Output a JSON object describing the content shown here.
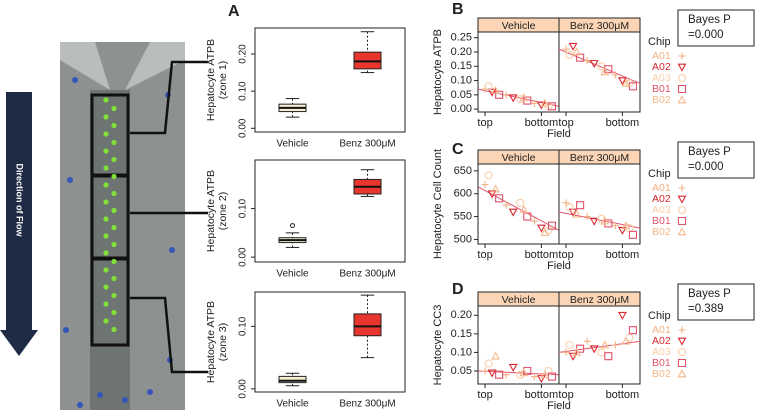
{
  "figure": {
    "panel_labels": [
      "A",
      "B",
      "C",
      "D"
    ],
    "flow_label": "Direction of Flow"
  },
  "chart_data": [
    {
      "type": "box",
      "ylabel": [
        "Hepatocyte ATPB",
        "(zone 1)"
      ],
      "categories": [
        "Vehicle",
        "Benz 300μM"
      ],
      "ylim": [
        -0.01,
        0.27
      ],
      "yticks": [
        {
          "value": 0,
          "label": "0.00"
        },
        {
          "value": 0.1,
          "label": "0.10"
        },
        {
          "value": 0.2,
          "label": "0.20"
        }
      ],
      "boxes": [
        {
          "min": 0.03,
          "q1": 0.045,
          "median": 0.055,
          "q3": 0.065,
          "max": 0.08,
          "color": "#f5ecd2",
          "outliers": []
        },
        {
          "min": 0.15,
          "q1": 0.16,
          "median": 0.18,
          "q3": 0.205,
          "max": 0.26,
          "color": "#e8352e",
          "outliers": []
        }
      ]
    },
    {
      "type": "box",
      "ylabel": [
        "Hepatocyte ATPB",
        "(zone 2)"
      ],
      "categories": [
        "Vehicle",
        "Benz 300μM"
      ],
      "ylim": [
        -0.01,
        0.2
      ],
      "yticks": [
        {
          "value": 0,
          "label": "0.00"
        },
        {
          "value": 0.1,
          "label": "0.10"
        }
      ],
      "boxes": [
        {
          "min": 0.02,
          "q1": 0.03,
          "median": 0.035,
          "q3": 0.04,
          "max": 0.05,
          "color": "#f5ecd2",
          "outliers": [
            0.065
          ]
        },
        {
          "min": 0.125,
          "q1": 0.13,
          "median": 0.145,
          "q3": 0.16,
          "max": 0.18,
          "color": "#e8352e",
          "outliers": []
        }
      ]
    },
    {
      "type": "box",
      "ylabel": [
        "Hepatocyte ATPB",
        "(zone 3)"
      ],
      "categories": [
        "Vehicle",
        "Benz 300μM"
      ],
      "ylim": [
        -0.005,
        0.155
      ],
      "yticks": [
        {
          "value": 0,
          "label": "0.00"
        },
        {
          "value": 0.1,
          "label": "0.10"
        }
      ],
      "boxes": [
        {
          "min": 0.005,
          "q1": 0.01,
          "median": 0.013,
          "q3": 0.02,
          "max": 0.025,
          "color": "#f5ecd2",
          "outliers": []
        },
        {
          "min": 0.05,
          "q1": 0.085,
          "median": 0.1,
          "q3": 0.12,
          "max": 0.15,
          "color": "#e8352e",
          "outliers": []
        }
      ]
    },
    {
      "type": "facet-scatter",
      "ylabel": "Hepatocyte ATPB",
      "xlabel": "Field",
      "legend_title": "Chip",
      "annotation": [
        "Bayes P",
        "=0.000"
      ],
      "xlim": [
        0,
        11.5
      ],
      "xticks": [
        {
          "value": 1,
          "label": "top"
        },
        {
          "value": 9,
          "label": "bottom"
        }
      ],
      "ylim": [
        -0.01,
        0.27
      ],
      "yticks": [
        {
          "value": 0,
          "label": "0.00"
        },
        {
          "value": 0.05,
          "label": "0.05"
        },
        {
          "value": 0.1,
          "label": "0.10"
        },
        {
          "value": 0.15,
          "label": "0.15"
        },
        {
          "value": 0.2,
          "label": "0.20"
        },
        {
          "value": 0.25,
          "label": "0.25"
        }
      ],
      "series": [
        {
          "name": "A01",
          "color": "#f4b183",
          "marker": "plus"
        },
        {
          "name": "A02",
          "color": "#d9262f",
          "marker": "tri-down"
        },
        {
          "name": "A03",
          "color": "#f9cfa8",
          "marker": "circle"
        },
        {
          "name": "B01",
          "color": "#e0536a",
          "marker": "square"
        },
        {
          "name": "B02",
          "color": "#f5b88a",
          "marker": "tri-up"
        }
      ],
      "panels": [
        {
          "strip": "Vehicle",
          "trend": [
            0.07,
            0.01
          ],
          "series": [
            {
              "x": [
                1,
                4,
                8
              ],
              "values": [
                0.07,
                0.05,
                0.02
              ]
            },
            {
              "x": [
                2,
                5,
                9
              ],
              "values": [
                0.06,
                0.04,
                0.015
              ]
            },
            {
              "x": [
                1.5,
                6,
                10
              ],
              "values": [
                0.08,
                0.035,
                0.01
              ]
            },
            {
              "x": [
                3,
                7,
                10.5
              ],
              "values": [
                0.05,
                0.03,
                0.01
              ]
            },
            {
              "x": [
                2.5,
                6.5,
                9.5
              ],
              "values": [
                0.065,
                0.04,
                0.02
              ]
            }
          ]
        },
        {
          "strip": "Benz 300μM",
          "trend": [
            0.21,
            0.09
          ],
          "series": [
            {
              "x": [
                1,
                4,
                8
              ],
              "values": [
                0.21,
                0.17,
                0.12
              ]
            },
            {
              "x": [
                2,
                5,
                9
              ],
              "values": [
                0.22,
                0.16,
                0.1
              ]
            },
            {
              "x": [
                1.5,
                6,
                10
              ],
              "values": [
                0.19,
                0.15,
                0.09
              ]
            },
            {
              "x": [
                3,
                7,
                10.5
              ],
              "values": [
                0.18,
                0.14,
                0.08
              ]
            },
            {
              "x": [
                2.5,
                6.5,
                9.5
              ],
              "values": [
                0.2,
                0.13,
                0.09
              ]
            }
          ]
        }
      ]
    },
    {
      "type": "facet-scatter",
      "ylabel": "Hepatocyte Cell Count",
      "xlabel": "Field",
      "legend_title": "Chip",
      "annotation": [
        "Bayes P",
        "=0.000"
      ],
      "xlim": [
        0,
        11.5
      ],
      "xticks": [
        {
          "value": 1,
          "label": "top"
        },
        {
          "value": 9,
          "label": "bottom"
        }
      ],
      "ylim": [
        490,
        665
      ],
      "yticks": [
        500,
        550,
        600,
        650
      ],
      "series": [
        {
          "name": "A01",
          "color": "#f4b183",
          "marker": "plus"
        },
        {
          "name": "A02",
          "color": "#d9262f",
          "marker": "tri-down"
        },
        {
          "name": "A03",
          "color": "#f9cfa8",
          "marker": "circle"
        },
        {
          "name": "B01",
          "color": "#e0536a",
          "marker": "square"
        },
        {
          "name": "B02",
          "color": "#f5b88a",
          "marker": "tri-up"
        }
      ],
      "panels": [
        {
          "strip": "Vehicle",
          "trend": [
            615,
            520
          ],
          "series": [
            {
              "x": [
                1,
                4,
                8
              ],
              "values": [
                620,
                575,
                540
              ]
            },
            {
              "x": [
                2,
                5,
                9
              ],
              "values": [
                600,
                560,
                525
              ]
            },
            {
              "x": [
                1.5,
                6,
                10
              ],
              "values": [
                640,
                580,
                520
              ]
            },
            {
              "x": [
                3,
                7,
                10.5
              ],
              "values": [
                590,
                550,
                530
              ]
            },
            {
              "x": [
                2.5,
                6.5,
                9.5
              ],
              "values": [
                610,
                565,
                515
              ]
            }
          ]
        },
        {
          "strip": "Benz 300μM",
          "trend": [
            560,
            525
          ],
          "series": [
            {
              "x": [
                1,
                4,
                8
              ],
              "values": [
                580,
                550,
                530
              ]
            },
            {
              "x": [
                2,
                5,
                9
              ],
              "values": [
                560,
                540,
                520
              ]
            },
            {
              "x": [
                1.5,
                6,
                10
              ],
              "values": [
                570,
                545,
                525
              ]
            },
            {
              "x": [
                3,
                7,
                10.5
              ],
              "values": [
                575,
                535,
                510
              ]
            },
            {
              "x": [
                2.5,
                6.5,
                9.5
              ],
              "values": [
                555,
                540,
                530
              ]
            }
          ]
        }
      ]
    },
    {
      "type": "facet-scatter",
      "ylabel": "Hepatocyte CC3",
      "xlabel": "Field",
      "legend_title": "Chip",
      "annotation": [
        "Bayes P",
        "=0.389"
      ],
      "xlim": [
        0,
        11.5
      ],
      "xticks": [
        {
          "value": 1,
          "label": "top"
        },
        {
          "value": 9,
          "label": "bottom"
        }
      ],
      "ylim": [
        0.015,
        0.225
      ],
      "yticks": [
        {
          "value": 0.05,
          "label": "0.05"
        },
        {
          "value": 0.1,
          "label": "0.10"
        },
        {
          "value": 0.15,
          "label": "0.15"
        },
        {
          "value": 0.2,
          "label": "0.20"
        }
      ],
      "series": [
        {
          "name": "A01",
          "color": "#f4b183",
          "marker": "plus"
        },
        {
          "name": "A02",
          "color": "#d9262f",
          "marker": "tri-down"
        },
        {
          "name": "A03",
          "color": "#f9cfa8",
          "marker": "circle"
        },
        {
          "name": "B01",
          "color": "#e0536a",
          "marker": "square"
        },
        {
          "name": "B02",
          "color": "#f5b88a",
          "marker": "tri-up"
        }
      ],
      "panels": [
        {
          "strip": "Vehicle",
          "trend": [
            0.05,
            0.04
          ],
          "series": [
            {
              "x": [
                1,
                4,
                8
              ],
              "values": [
                0.05,
                0.04,
                0.035
              ]
            },
            {
              "x": [
                2,
                5,
                9
              ],
              "values": [
                0.045,
                0.06,
                0.03
              ]
            },
            {
              "x": [
                1.5,
                6,
                10
              ],
              "values": [
                0.07,
                0.04,
                0.05
              ]
            },
            {
              "x": [
                3,
                7,
                10.5
              ],
              "values": [
                0.04,
                0.05,
                0.035
              ]
            },
            {
              "x": [
                2.5,
                6.5,
                9.5
              ],
              "values": [
                0.09,
                0.045,
                0.04
              ]
            }
          ]
        },
        {
          "strip": "Benz 300μM",
          "trend": [
            0.1,
            0.13
          ],
          "series": [
            {
              "x": [
                1,
                4,
                8
              ],
              "values": [
                0.1,
                0.13,
                0.12
              ]
            },
            {
              "x": [
                2,
                5,
                9
              ],
              "values": [
                0.09,
                0.11,
                0.2
              ]
            },
            {
              "x": [
                1.5,
                6,
                10
              ],
              "values": [
                0.12,
                0.1,
                0.14
              ]
            },
            {
              "x": [
                3,
                7,
                10.5
              ],
              "values": [
                0.11,
                0.09,
                0.16
              ]
            },
            {
              "x": [
                2.5,
                6.5,
                9.5
              ],
              "values": [
                0.1,
                0.12,
                0.13
              ]
            }
          ]
        }
      ]
    }
  ]
}
